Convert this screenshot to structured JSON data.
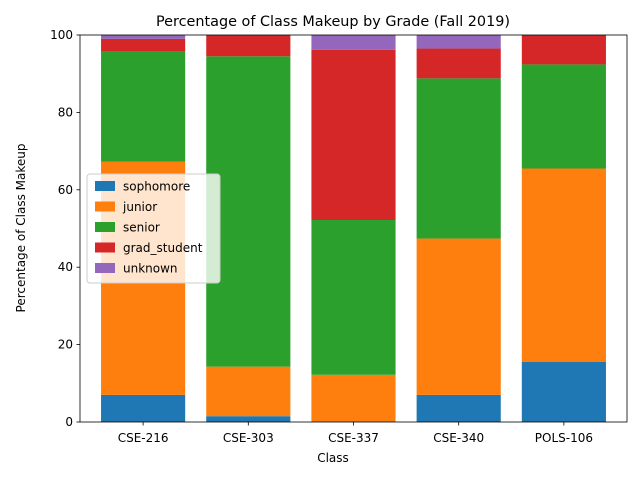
{
  "chart_data": {
    "type": "bar",
    "stacked": true,
    "title": "Percentage of Class Makeup by Grade (Fall 2019)",
    "xlabel": "Class",
    "ylabel": "Percentage of Class Makeup",
    "ylim": [
      0,
      100
    ],
    "yticks": [
      "0",
      "20",
      "40",
      "60",
      "80",
      "100"
    ],
    "grid": false,
    "legend_position": "center-left",
    "categories": [
      "CSE-216",
      "CSE-303",
      "CSE-337",
      "CSE-340",
      "POLS-106"
    ],
    "series": [
      {
        "name": "sophomore",
        "color": "#1f77b4",
        "values": [
          7.0,
          1.5,
          0.0,
          7.0,
          15.5
        ]
      },
      {
        "name": "junior",
        "color": "#ff7f0e",
        "values": [
          60.3,
          12.8,
          12.2,
          40.4,
          50.0
        ]
      },
      {
        "name": "senior",
        "color": "#2ca02c",
        "values": [
          28.4,
          80.2,
          40.0,
          41.4,
          26.9
        ]
      },
      {
        "name": "grad_student",
        "color": "#d62728",
        "values": [
          3.3,
          5.5,
          44.0,
          7.7,
          7.6
        ]
      },
      {
        "name": "unknown",
        "color": "#9467bd",
        "values": [
          1.0,
          0.0,
          3.8,
          3.5,
          0.0
        ]
      }
    ]
  }
}
